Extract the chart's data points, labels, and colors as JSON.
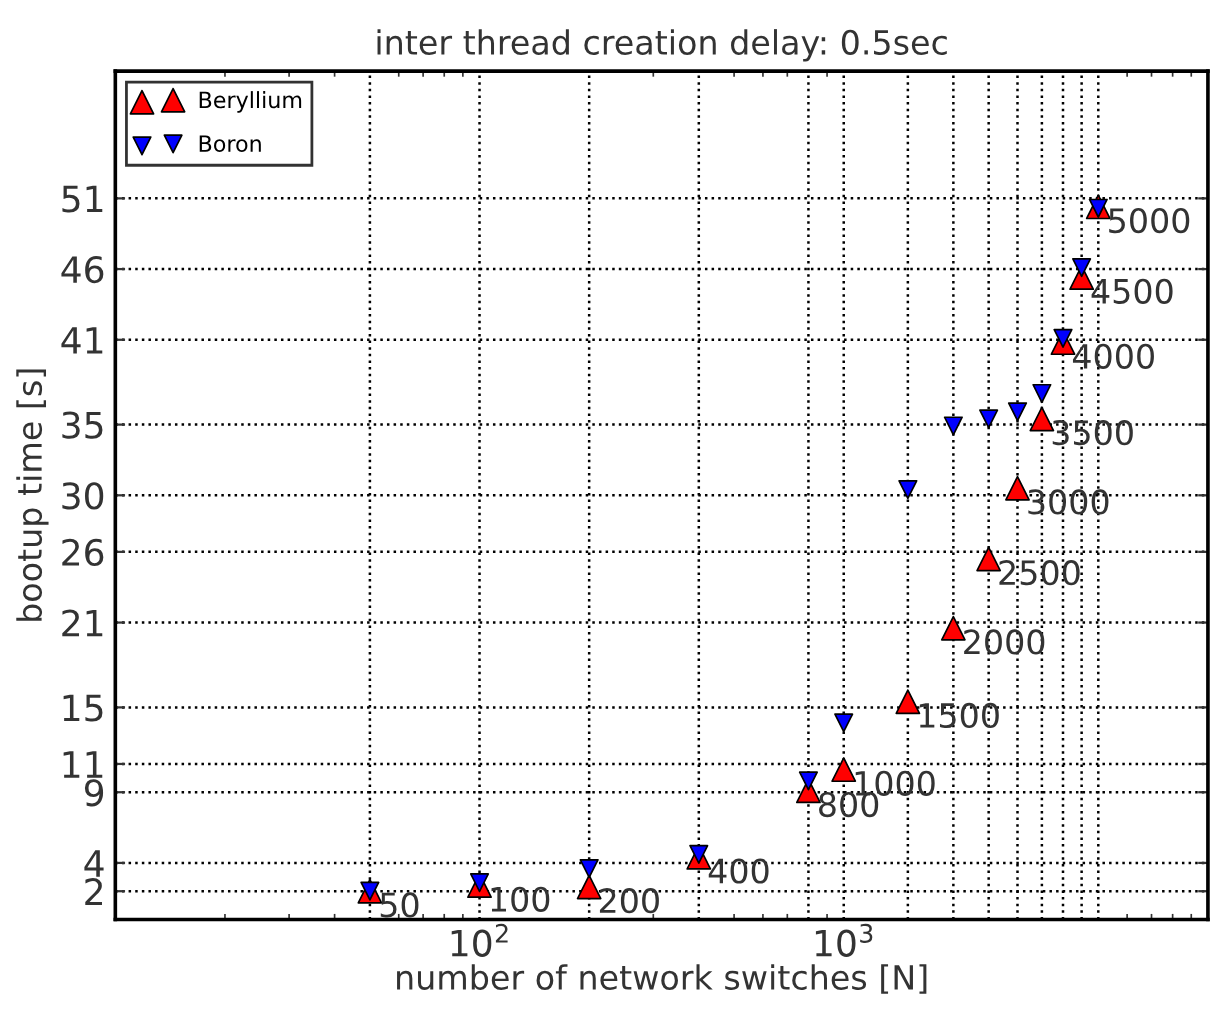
{
  "chart_data": {
    "type": "scatter",
    "title": "inter thread creation delay: 0.5sec",
    "xlabel": "number of network switches [N]",
    "ylabel": "bootup time [s]",
    "log": "x",
    "grid": true,
    "legend": "top left",
    "x": [
      50,
      100,
      200,
      400,
      800,
      1000,
      1500,
      2000,
      2500,
      3000,
      3500,
      4000,
      4500,
      5000
    ],
    "series": [
      {
        "name": "Beryllium",
        "color": "#ff0000",
        "marker": "triangle",
        "values": [
          2.0,
          2.4,
          2.3,
          4.4,
          9.1,
          10.6,
          15.4,
          20.6,
          25.5,
          30.5,
          35.4,
          40.8,
          45.4,
          50.4
        ]
      },
      {
        "name": "Boron",
        "color": "#0000ff",
        "marker": "triangle-down",
        "values": [
          2.0,
          2.6,
          3.6,
          4.6,
          9.8,
          13.9,
          30.4,
          34.9,
          35.4,
          35.9,
          37.2,
          41.1,
          46.1,
          50.3
        ]
      }
    ],
    "xlim": [
      10,
      10000
    ],
    "ylim": [
      0,
      60
    ],
    "xticks": [
      {
        "value": 50,
        "label": null
      },
      {
        "value": 100,
        "label": "10$^{2}$"
      },
      {
        "value": 200,
        "label": null
      },
      {
        "value": 400,
        "label": null
      },
      {
        "value": 800,
        "label": null
      },
      {
        "value": 1000,
        "label": "10$^{3}$"
      },
      {
        "value": 1500,
        "label": null
      },
      {
        "value": 2000,
        "label": null
      },
      {
        "value": 2500,
        "label": null
      },
      {
        "value": 3000,
        "label": null
      },
      {
        "value": 3500,
        "label": null
      },
      {
        "value": 4000,
        "label": null
      },
      {
        "value": 4500,
        "label": null
      },
      {
        "value": 5000,
        "label": null
      }
    ],
    "yticks": [
      2,
      4,
      9,
      11,
      15,
      21,
      26,
      30,
      35,
      41,
      46,
      51
    ],
    "annotations": [
      {
        "text": "50",
        "x": 50,
        "y": 2.0
      },
      {
        "text": "100",
        "x": 100,
        "y": 2.4
      },
      {
        "text": "200",
        "x": 200,
        "y": 2.3
      },
      {
        "text": "400",
        "x": 400,
        "y": 4.4
      },
      {
        "text": "800",
        "x": 800,
        "y": 9.1
      },
      {
        "text": "1000",
        "x": 1000,
        "y": 10.6
      },
      {
        "text": "1500",
        "x": 1500,
        "y": 15.4
      },
      {
        "text": "2000",
        "x": 2000,
        "y": 20.6
      },
      {
        "text": "2500",
        "x": 2500,
        "y": 25.5
      },
      {
        "text": "3000",
        "x": 3000,
        "y": 30.5
      },
      {
        "text": "3500",
        "x": 3500,
        "y": 35.4
      },
      {
        "text": "4000",
        "x": 4000,
        "y": 40.8
      },
      {
        "text": "4500",
        "x": 4500,
        "y": 45.4
      },
      {
        "text": "5000",
        "x": 5000,
        "y": 50.4
      }
    ]
  }
}
